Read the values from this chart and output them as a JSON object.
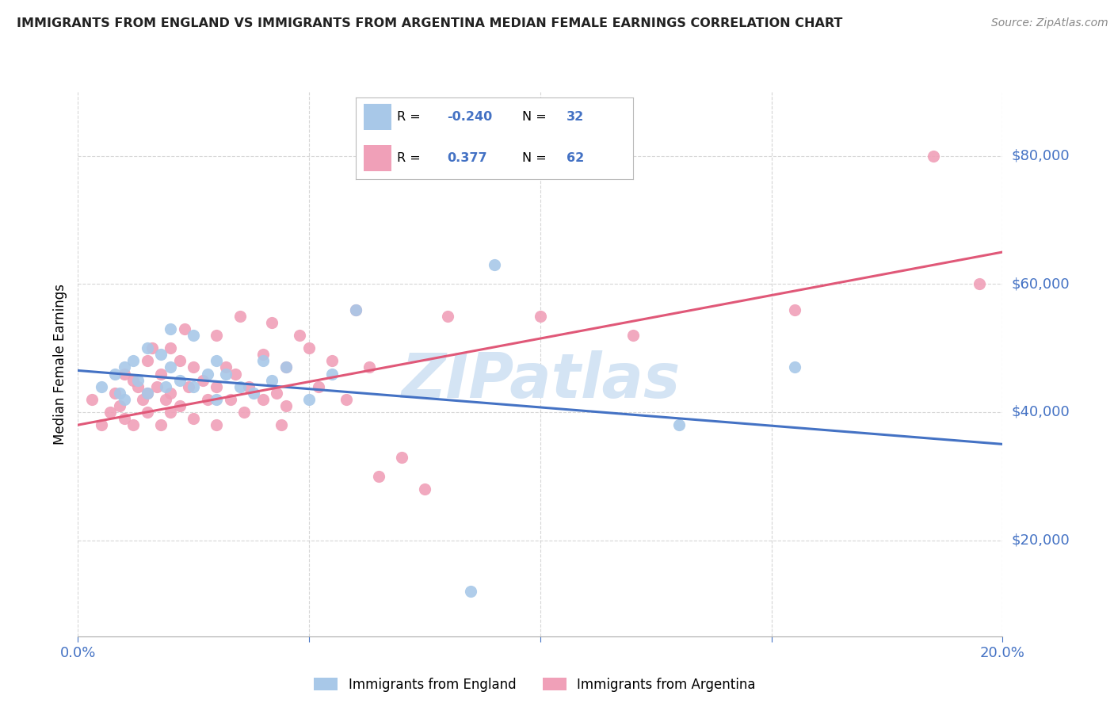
{
  "title": "IMMIGRANTS FROM ENGLAND VS IMMIGRANTS FROM ARGENTINA MEDIAN FEMALE EARNINGS CORRELATION CHART",
  "source_text": "Source: ZipAtlas.com",
  "ylabel": "Median Female Earnings",
  "watermark": "ZIPatlas",
  "legend_entries": [
    {
      "label": "Immigrants from England",
      "color": "#a8c8e8",
      "R": "-0.240",
      "N": "32"
    },
    {
      "label": "Immigrants from Argentina",
      "color": "#f0a0b8",
      "R": "0.377",
      "N": "62"
    }
  ],
  "blue_trend_color": "#4472c4",
  "pink_trend_color": "#e05878",
  "axis_label_color": "#4472c4",
  "xlim": [
    0.0,
    0.2
  ],
  "ylim": [
    5000,
    90000
  ],
  "yticks": [
    20000,
    40000,
    60000,
    80000
  ],
  "xticks": [
    0.0,
    0.05,
    0.1,
    0.15,
    0.2
  ],
  "blue_scatter_x": [
    0.005,
    0.008,
    0.009,
    0.01,
    0.01,
    0.012,
    0.013,
    0.015,
    0.015,
    0.018,
    0.019,
    0.02,
    0.02,
    0.022,
    0.025,
    0.025,
    0.028,
    0.03,
    0.03,
    0.032,
    0.035,
    0.038,
    0.04,
    0.042,
    0.045,
    0.05,
    0.055,
    0.06,
    0.085,
    0.09,
    0.13,
    0.155
  ],
  "blue_scatter_y": [
    44000,
    46000,
    43000,
    47000,
    42000,
    48000,
    45000,
    50000,
    43000,
    49000,
    44000,
    53000,
    47000,
    45000,
    52000,
    44000,
    46000,
    48000,
    42000,
    46000,
    44000,
    43000,
    48000,
    45000,
    47000,
    42000,
    46000,
    56000,
    12000,
    63000,
    38000,
    47000
  ],
  "pink_scatter_x": [
    0.003,
    0.005,
    0.007,
    0.008,
    0.009,
    0.01,
    0.01,
    0.012,
    0.012,
    0.013,
    0.014,
    0.015,
    0.015,
    0.015,
    0.016,
    0.017,
    0.018,
    0.018,
    0.019,
    0.02,
    0.02,
    0.02,
    0.022,
    0.022,
    0.023,
    0.024,
    0.025,
    0.025,
    0.027,
    0.028,
    0.03,
    0.03,
    0.03,
    0.032,
    0.033,
    0.034,
    0.035,
    0.036,
    0.037,
    0.04,
    0.04,
    0.042,
    0.043,
    0.044,
    0.045,
    0.045,
    0.048,
    0.05,
    0.052,
    0.055,
    0.058,
    0.06,
    0.063,
    0.065,
    0.07,
    0.075,
    0.08,
    0.1,
    0.12,
    0.155,
    0.185,
    0.195
  ],
  "pink_scatter_y": [
    42000,
    38000,
    40000,
    43000,
    41000,
    46000,
    39000,
    45000,
    38000,
    44000,
    42000,
    48000,
    40000,
    43000,
    50000,
    44000,
    46000,
    38000,
    42000,
    50000,
    43000,
    40000,
    48000,
    41000,
    53000,
    44000,
    47000,
    39000,
    45000,
    42000,
    52000,
    44000,
    38000,
    47000,
    42000,
    46000,
    55000,
    40000,
    44000,
    49000,
    42000,
    54000,
    43000,
    38000,
    47000,
    41000,
    52000,
    50000,
    44000,
    48000,
    42000,
    56000,
    47000,
    30000,
    33000,
    28000,
    55000,
    55000,
    52000,
    56000,
    80000,
    60000
  ],
  "blue_trend_x": [
    0.0,
    0.2
  ],
  "blue_trend_y": [
    46500,
    35000
  ],
  "pink_trend_x": [
    0.0,
    0.2
  ],
  "pink_trend_y": [
    38000,
    65000
  ],
  "grid_color": "#cccccc",
  "watermark_color": "#d4e4f4",
  "background_color": "#ffffff",
  "dot_size": 120
}
